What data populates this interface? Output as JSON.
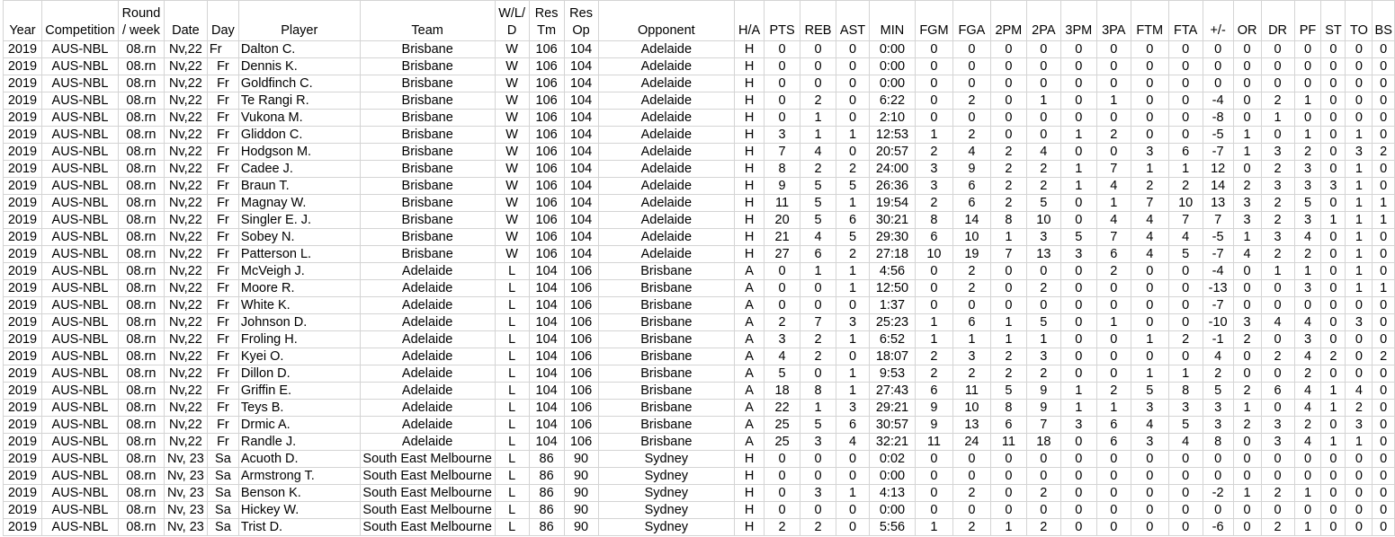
{
  "columns": [
    "Year",
    "Competition",
    "Round\n/ week",
    "Date",
    "Day",
    "Player",
    "Team",
    "W/L/\nD",
    "Res\nTm",
    "Res\nOp",
    "Opponent",
    "H/A",
    "PTS",
    "REB",
    "AST",
    "MIN",
    "FGM",
    "FGA",
    "2PM",
    "2PA",
    "3PM",
    "3PA",
    "FTM",
    "FTA",
    "+/-",
    "OR",
    "DR",
    "PF",
    "ST",
    "TO",
    "BS"
  ],
  "rows": [
    [
      "2019",
      "AUS-NBL",
      "08.rn",
      "Nv,22",
      "Fr",
      "Dalton C.",
      "Brisbane",
      "W",
      "106",
      "104",
      "Adelaide",
      "H",
      "0",
      "0",
      "0",
      "0:00",
      "0",
      "0",
      "0",
      "0",
      "0",
      "0",
      "0",
      "0",
      "0",
      "0",
      "0",
      "0",
      "0",
      "0",
      "0"
    ],
    [
      "2019",
      "AUS-NBL",
      "08.rn",
      "Nv,22",
      "Fr",
      "Dennis K.",
      "Brisbane",
      "W",
      "106",
      "104",
      "Adelaide",
      "H",
      "0",
      "0",
      "0",
      "0:00",
      "0",
      "0",
      "0",
      "0",
      "0",
      "0",
      "0",
      "0",
      "0",
      "0",
      "0",
      "0",
      "0",
      "0",
      "0"
    ],
    [
      "2019",
      "AUS-NBL",
      "08.rn",
      "Nv,22",
      "Fr",
      "Goldfinch C.",
      "Brisbane",
      "W",
      "106",
      "104",
      "Adelaide",
      "H",
      "0",
      "0",
      "0",
      "0:00",
      "0",
      "0",
      "0",
      "0",
      "0",
      "0",
      "0",
      "0",
      "0",
      "0",
      "0",
      "0",
      "0",
      "0",
      "0"
    ],
    [
      "2019",
      "AUS-NBL",
      "08.rn",
      "Nv,22",
      "Fr",
      "Te Rangi R.",
      "Brisbane",
      "W",
      "106",
      "104",
      "Adelaide",
      "H",
      "0",
      "2",
      "0",
      "6:22",
      "0",
      "2",
      "0",
      "1",
      "0",
      "1",
      "0",
      "0",
      "-4",
      "0",
      "2",
      "1",
      "0",
      "0",
      "0"
    ],
    [
      "2019",
      "AUS-NBL",
      "08.rn",
      "Nv,22",
      "Fr",
      "Vukona M.",
      "Brisbane",
      "W",
      "106",
      "104",
      "Adelaide",
      "H",
      "0",
      "1",
      "0",
      "2:10",
      "0",
      "0",
      "0",
      "0",
      "0",
      "0",
      "0",
      "0",
      "-8",
      "0",
      "1",
      "0",
      "0",
      "0",
      "0"
    ],
    [
      "2019",
      "AUS-NBL",
      "08.rn",
      "Nv,22",
      "Fr",
      "Gliddon C.",
      "Brisbane",
      "W",
      "106",
      "104",
      "Adelaide",
      "H",
      "3",
      "1",
      "1",
      "12:53",
      "1",
      "2",
      "0",
      "0",
      "1",
      "2",
      "0",
      "0",
      "-5",
      "1",
      "0",
      "1",
      "0",
      "1",
      "0"
    ],
    [
      "2019",
      "AUS-NBL",
      "08.rn",
      "Nv,22",
      "Fr",
      "Hodgson M.",
      "Brisbane",
      "W",
      "106",
      "104",
      "Adelaide",
      "H",
      "7",
      "4",
      "0",
      "20:57",
      "2",
      "4",
      "2",
      "4",
      "0",
      "0",
      "3",
      "6",
      "-7",
      "1",
      "3",
      "2",
      "0",
      "3",
      "2"
    ],
    [
      "2019",
      "AUS-NBL",
      "08.rn",
      "Nv,22",
      "Fr",
      "Cadee J.",
      "Brisbane",
      "W",
      "106",
      "104",
      "Adelaide",
      "H",
      "8",
      "2",
      "2",
      "24:00",
      "3",
      "9",
      "2",
      "2",
      "1",
      "7",
      "1",
      "1",
      "12",
      "0",
      "2",
      "3",
      "0",
      "1",
      "0"
    ],
    [
      "2019",
      "AUS-NBL",
      "08.rn",
      "Nv,22",
      "Fr",
      "Braun T.",
      "Brisbane",
      "W",
      "106",
      "104",
      "Adelaide",
      "H",
      "9",
      "5",
      "5",
      "26:36",
      "3",
      "6",
      "2",
      "2",
      "1",
      "4",
      "2",
      "2",
      "14",
      "2",
      "3",
      "3",
      "3",
      "1",
      "0"
    ],
    [
      "2019",
      "AUS-NBL",
      "08.rn",
      "Nv,22",
      "Fr",
      "Magnay W.",
      "Brisbane",
      "W",
      "106",
      "104",
      "Adelaide",
      "H",
      "11",
      "5",
      "1",
      "19:54",
      "2",
      "6",
      "2",
      "5",
      "0",
      "1",
      "7",
      "10",
      "13",
      "3",
      "2",
      "5",
      "0",
      "1",
      "1"
    ],
    [
      "2019",
      "AUS-NBL",
      "08.rn",
      "Nv,22",
      "Fr",
      "Singler E. J.",
      "Brisbane",
      "W",
      "106",
      "104",
      "Adelaide",
      "H",
      "20",
      "5",
      "6",
      "30:21",
      "8",
      "14",
      "8",
      "10",
      "0",
      "4",
      "4",
      "7",
      "7",
      "3",
      "2",
      "3",
      "1",
      "1",
      "1"
    ],
    [
      "2019",
      "AUS-NBL",
      "08.rn",
      "Nv,22",
      "Fr",
      "Sobey N.",
      "Brisbane",
      "W",
      "106",
      "104",
      "Adelaide",
      "H",
      "21",
      "4",
      "5",
      "29:30",
      "6",
      "10",
      "1",
      "3",
      "5",
      "7",
      "4",
      "4",
      "-5",
      "1",
      "3",
      "4",
      "0",
      "1",
      "0"
    ],
    [
      "2019",
      "AUS-NBL",
      "08.rn",
      "Nv,22",
      "Fr",
      "Patterson L.",
      "Brisbane",
      "W",
      "106",
      "104",
      "Adelaide",
      "H",
      "27",
      "6",
      "2",
      "27:18",
      "10",
      "19",
      "7",
      "13",
      "3",
      "6",
      "4",
      "5",
      "-7",
      "4",
      "2",
      "2",
      "0",
      "1",
      "0"
    ],
    [
      "2019",
      "AUS-NBL",
      "08.rn",
      "Nv,22",
      "Fr",
      "McVeigh J.",
      "Adelaide",
      "L",
      "104",
      "106",
      "Brisbane",
      "A",
      "0",
      "1",
      "1",
      "4:56",
      "0",
      "2",
      "0",
      "0",
      "0",
      "2",
      "0",
      "0",
      "-4",
      "0",
      "1",
      "1",
      "0",
      "1",
      "0"
    ],
    [
      "2019",
      "AUS-NBL",
      "08.rn",
      "Nv,22",
      "Fr",
      "Moore R.",
      "Adelaide",
      "L",
      "104",
      "106",
      "Brisbane",
      "A",
      "0",
      "0",
      "1",
      "12:50",
      "0",
      "2",
      "0",
      "2",
      "0",
      "0",
      "0",
      "0",
      "-13",
      "0",
      "0",
      "3",
      "0",
      "1",
      "1"
    ],
    [
      "2019",
      "AUS-NBL",
      "08.rn",
      "Nv,22",
      "Fr",
      "White K.",
      "Adelaide",
      "L",
      "104",
      "106",
      "Brisbane",
      "A",
      "0",
      "0",
      "0",
      "1:37",
      "0",
      "0",
      "0",
      "0",
      "0",
      "0",
      "0",
      "0",
      "-7",
      "0",
      "0",
      "0",
      "0",
      "0",
      "0"
    ],
    [
      "2019",
      "AUS-NBL",
      "08.rn",
      "Nv,22",
      "Fr",
      "Johnson D.",
      "Adelaide",
      "L",
      "104",
      "106",
      "Brisbane",
      "A",
      "2",
      "7",
      "3",
      "25:23",
      "1",
      "6",
      "1",
      "5",
      "0",
      "1",
      "0",
      "0",
      "-10",
      "3",
      "4",
      "4",
      "0",
      "3",
      "0"
    ],
    [
      "2019",
      "AUS-NBL",
      "08.rn",
      "Nv,22",
      "Fr",
      "Froling H.",
      "Adelaide",
      "L",
      "104",
      "106",
      "Brisbane",
      "A",
      "3",
      "2",
      "1",
      "6:52",
      "1",
      "1",
      "1",
      "1",
      "0",
      "0",
      "1",
      "2",
      "-1",
      "2",
      "0",
      "3",
      "0",
      "0",
      "0"
    ],
    [
      "2019",
      "AUS-NBL",
      "08.rn",
      "Nv,22",
      "Fr",
      "Kyei O.",
      "Adelaide",
      "L",
      "104",
      "106",
      "Brisbane",
      "A",
      "4",
      "2",
      "0",
      "18:07",
      "2",
      "3",
      "2",
      "3",
      "0",
      "0",
      "0",
      "0",
      "4",
      "0",
      "2",
      "4",
      "2",
      "0",
      "2"
    ],
    [
      "2019",
      "AUS-NBL",
      "08.rn",
      "Nv,22",
      "Fr",
      "Dillon D.",
      "Adelaide",
      "L",
      "104",
      "106",
      "Brisbane",
      "A",
      "5",
      "0",
      "1",
      "9:53",
      "2",
      "2",
      "2",
      "2",
      "0",
      "0",
      "1",
      "1",
      "2",
      "0",
      "0",
      "2",
      "0",
      "0",
      "0"
    ],
    [
      "2019",
      "AUS-NBL",
      "08.rn",
      "Nv,22",
      "Fr",
      "Griffin E.",
      "Adelaide",
      "L",
      "104",
      "106",
      "Brisbane",
      "A",
      "18",
      "8",
      "1",
      "27:43",
      "6",
      "11",
      "5",
      "9",
      "1",
      "2",
      "5",
      "8",
      "5",
      "2",
      "6",
      "4",
      "1",
      "4",
      "0"
    ],
    [
      "2019",
      "AUS-NBL",
      "08.rn",
      "Nv,22",
      "Fr",
      "Teys B.",
      "Adelaide",
      "L",
      "104",
      "106",
      "Brisbane",
      "A",
      "22",
      "1",
      "3",
      "29:21",
      "9",
      "10",
      "8",
      "9",
      "1",
      "1",
      "3",
      "3",
      "3",
      "1",
      "0",
      "4",
      "1",
      "2",
      "0"
    ],
    [
      "2019",
      "AUS-NBL",
      "08.rn",
      "Nv,22",
      "Fr",
      "Drmic A.",
      "Adelaide",
      "L",
      "104",
      "106",
      "Brisbane",
      "A",
      "25",
      "5",
      "6",
      "30:57",
      "9",
      "13",
      "6",
      "7",
      "3",
      "6",
      "4",
      "5",
      "3",
      "2",
      "3",
      "2",
      "0",
      "3",
      "0"
    ],
    [
      "2019",
      "AUS-NBL",
      "08.rn",
      "Nv,22",
      "Fr",
      "Randle J.",
      "Adelaide",
      "L",
      "104",
      "106",
      "Brisbane",
      "A",
      "25",
      "3",
      "4",
      "32:21",
      "11",
      "24",
      "11",
      "18",
      "0",
      "6",
      "3",
      "4",
      "8",
      "0",
      "3",
      "4",
      "1",
      "1",
      "0"
    ],
    [
      "2019",
      "AUS-NBL",
      "08.rn",
      "Nv, 23",
      "Sa",
      "Acuoth D.",
      "South East Melbourne",
      "L",
      "86",
      "90",
      "Sydney",
      "H",
      "0",
      "0",
      "0",
      "0:02",
      "0",
      "0",
      "0",
      "0",
      "0",
      "0",
      "0",
      "0",
      "0",
      "0",
      "0",
      "0",
      "0",
      "0",
      "0"
    ],
    [
      "2019",
      "AUS-NBL",
      "08.rn",
      "Nv, 23",
      "Sa",
      "Armstrong T.",
      "South East Melbourne",
      "L",
      "86",
      "90",
      "Sydney",
      "H",
      "0",
      "0",
      "0",
      "0:00",
      "0",
      "0",
      "0",
      "0",
      "0",
      "0",
      "0",
      "0",
      "0",
      "0",
      "0",
      "0",
      "0",
      "0",
      "0"
    ],
    [
      "2019",
      "AUS-NBL",
      "08.rn",
      "Nv, 23",
      "Sa",
      "Benson K.",
      "South East Melbourne",
      "L",
      "86",
      "90",
      "Sydney",
      "H",
      "0",
      "3",
      "1",
      "4:13",
      "0",
      "2",
      "0",
      "2",
      "0",
      "0",
      "0",
      "0",
      "-2",
      "1",
      "2",
      "1",
      "0",
      "0",
      "0"
    ],
    [
      "2019",
      "AUS-NBL",
      "08.rn",
      "Nv, 23",
      "Sa",
      "Hickey W.",
      "South East Melbourne",
      "L",
      "86",
      "90",
      "Sydney",
      "H",
      "0",
      "0",
      "0",
      "0:00",
      "0",
      "0",
      "0",
      "0",
      "0",
      "0",
      "0",
      "0",
      "0",
      "0",
      "0",
      "0",
      "0",
      "0",
      "0"
    ],
    [
      "2019",
      "AUS-NBL",
      "08.rn",
      "Nv, 23",
      "Sa",
      "Trist D.",
      "South East Melbourne",
      "L",
      "86",
      "90",
      "Sydney",
      "H",
      "2",
      "2",
      "0",
      "5:56",
      "1",
      "2",
      "1",
      "2",
      "0",
      "0",
      "0",
      "0",
      "-6",
      "0",
      "2",
      "1",
      "0",
      "0",
      "0"
    ]
  ]
}
